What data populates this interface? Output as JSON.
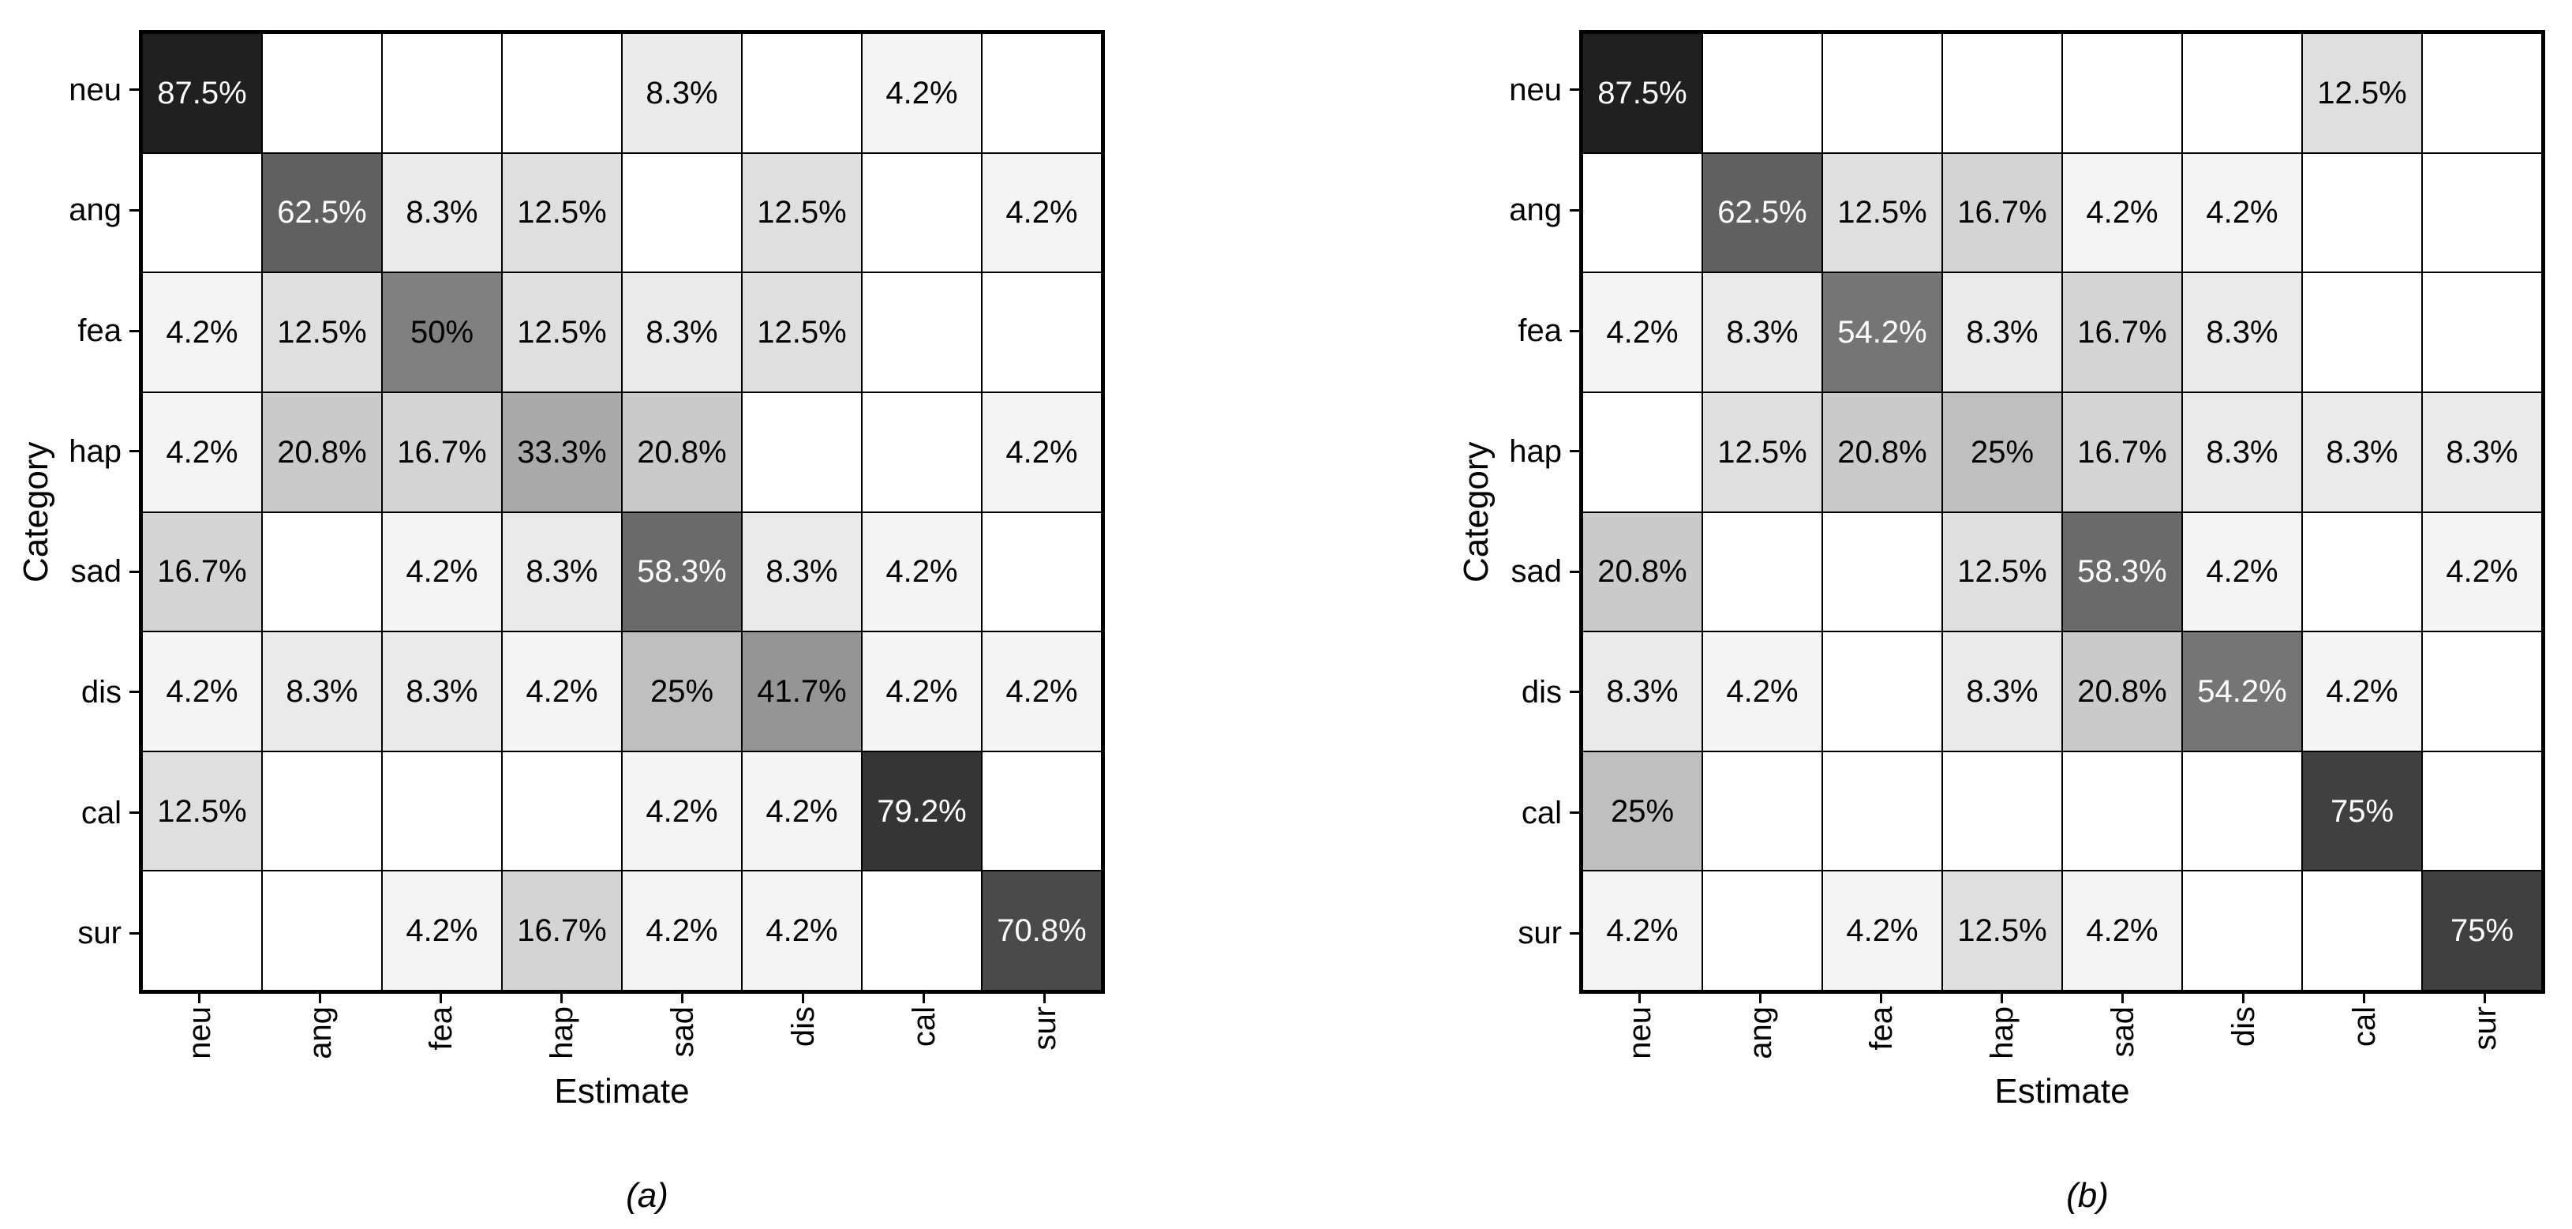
{
  "page": {
    "background_color": "#ffffff",
    "ink_color": "#000000"
  },
  "chart_data": [
    {
      "type": "heatmap",
      "caption": "(a)",
      "xlabel": "Estimate",
      "ylabel": "Category",
      "x_tick_labels": [
        "neu",
        "ang",
        "fea",
        "hap",
        "sad",
        "dis",
        "cal",
        "sur"
      ],
      "y_tick_labels": [
        "neu",
        "ang",
        "fea",
        "hap",
        "sad",
        "dis",
        "cal",
        "sur"
      ],
      "value_unit": "%",
      "scale": {
        "vmin": 0,
        "vmax": 100,
        "min_color": "#ffffff",
        "max_color": "#000000",
        "white_text_threshold": 50
      },
      "grid_on": true,
      "legend": "none",
      "matrix": [
        [
          87.5,
          0,
          0,
          0,
          8.3,
          0,
          4.2,
          0
        ],
        [
          0,
          62.5,
          8.3,
          12.5,
          0,
          12.5,
          0,
          4.2
        ],
        [
          4.2,
          12.5,
          50,
          12.5,
          8.3,
          12.5,
          0,
          0
        ],
        [
          4.2,
          20.8,
          16.7,
          33.3,
          20.8,
          0,
          0,
          4.2
        ],
        [
          16.7,
          0,
          4.2,
          8.3,
          58.3,
          8.3,
          4.2,
          0
        ],
        [
          4.2,
          8.3,
          8.3,
          4.2,
          25,
          41.7,
          4.2,
          4.2
        ],
        [
          12.5,
          0,
          0,
          0,
          4.2,
          4.2,
          79.2,
          0
        ],
        [
          0,
          0,
          4.2,
          16.7,
          4.2,
          4.2,
          0,
          70.8
        ]
      ]
    },
    {
      "type": "heatmap",
      "caption": "(b)",
      "xlabel": "Estimate",
      "ylabel": "Category",
      "x_tick_labels": [
        "neu",
        "ang",
        "fea",
        "hap",
        "sad",
        "dis",
        "cal",
        "sur"
      ],
      "y_tick_labels": [
        "neu",
        "ang",
        "fea",
        "hap",
        "sad",
        "dis",
        "cal",
        "sur"
      ],
      "value_unit": "%",
      "scale": {
        "vmin": 0,
        "vmax": 100,
        "min_color": "#ffffff",
        "max_color": "#000000",
        "white_text_threshold": 50
      },
      "grid_on": true,
      "legend": "none",
      "matrix": [
        [
          87.5,
          0,
          0,
          0,
          0,
          0,
          12.5,
          0
        ],
        [
          0,
          62.5,
          12.5,
          16.7,
          4.2,
          4.2,
          0,
          0
        ],
        [
          4.2,
          8.3,
          54.2,
          8.3,
          16.7,
          8.3,
          0,
          0
        ],
        [
          0,
          12.5,
          20.8,
          25,
          16.7,
          8.3,
          8.3,
          8.3
        ],
        [
          20.8,
          0,
          0,
          12.5,
          58.3,
          4.2,
          0,
          4.2
        ],
        [
          8.3,
          4.2,
          0,
          8.3,
          20.8,
          54.2,
          4.2,
          0
        ],
        [
          25,
          0,
          0,
          0,
          0,
          0,
          75,
          0
        ],
        [
          4.2,
          0,
          4.2,
          12.5,
          4.2,
          0,
          0,
          75
        ]
      ]
    }
  ]
}
